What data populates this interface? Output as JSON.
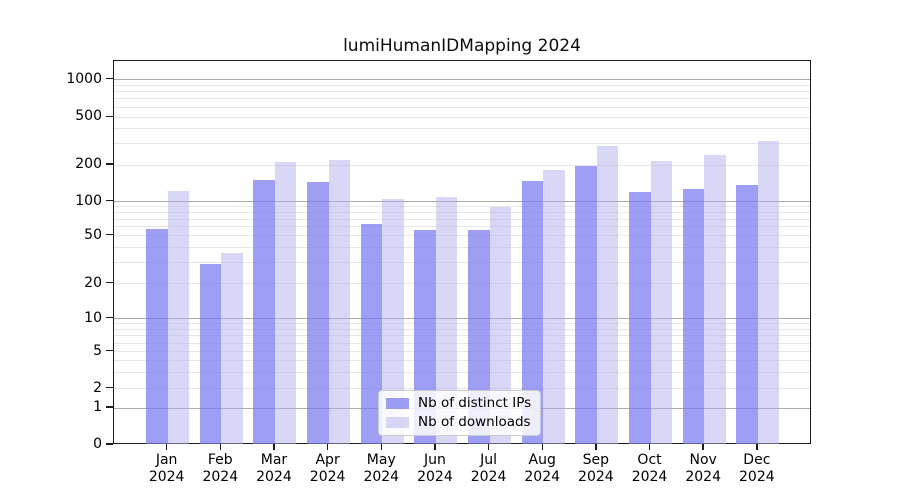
{
  "chart_data": {
    "type": "bar",
    "title": "lumiHumanIDMapping 2024",
    "categories": [
      "Jan",
      "Feb",
      "Mar",
      "Apr",
      "May",
      "Jun",
      "Jul",
      "Aug",
      "Sep",
      "Oct",
      "Nov",
      "Dec"
    ],
    "category_year": "2024",
    "series": [
      {
        "name": "Nb of distinct IPs",
        "color": "#a0a0f5",
        "values": [
          57,
          29,
          152,
          146,
          64,
          56,
          56,
          147,
          196,
          121,
          126,
          137
        ]
      },
      {
        "name": "Nb of downloads",
        "color": "#d8d8f6",
        "values": [
          122,
          36,
          212,
          222,
          106,
          110,
          90,
          182,
          287,
          215,
          243,
          318
        ]
      }
    ],
    "y_axis": {
      "scale": "log with linear segment to 0 (symlog-like)",
      "tick_labels": [
        "1000",
        "500",
        "200",
        "100",
        "50",
        "20",
        "10",
        "5",
        "2",
        "1",
        "0"
      ],
      "tick_values": [
        1000,
        500,
        200,
        100,
        50,
        20,
        10,
        5,
        2,
        1,
        0
      ],
      "ylim": [
        0,
        1400
      ]
    },
    "grid": true,
    "legend_position": "bottom-center"
  }
}
